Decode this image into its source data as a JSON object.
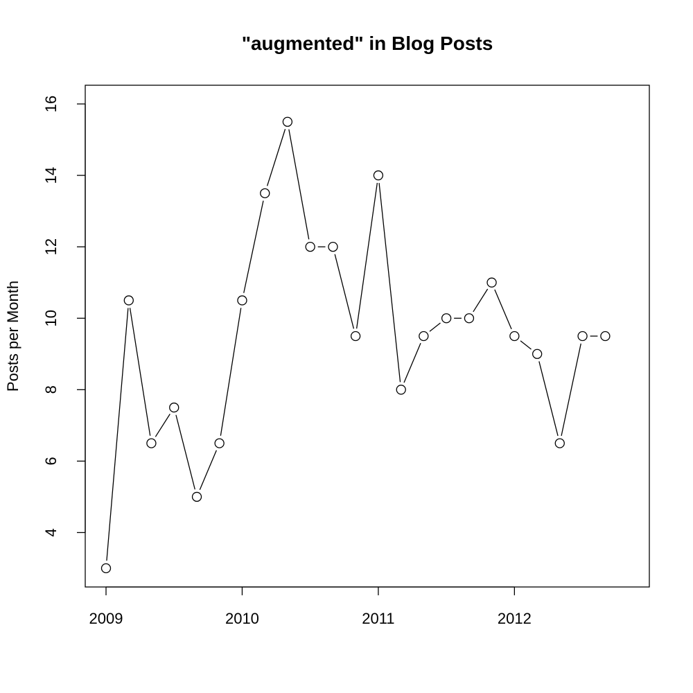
{
  "chart_data": {
    "type": "line",
    "title": "\"augmented\" in Blog Posts",
    "xlabel": "",
    "ylabel": "Posts per Month",
    "x_ticks": [
      "2009",
      "2010",
      "2011",
      "2012"
    ],
    "y_ticks": [
      "4",
      "6",
      "8",
      "10",
      "12",
      "14",
      "16"
    ],
    "xlim": [
      2009,
      2012.833
    ],
    "ylim": [
      3,
      16
    ],
    "grid": false,
    "series": [
      {
        "x": [
          2009.0,
          2009.167,
          2009.333,
          2009.5,
          2009.667,
          2009.833,
          2010.0,
          2010.167,
          2010.333,
          2010.5,
          2010.667,
          2010.833,
          2011.0,
          2011.167,
          2011.333,
          2011.5,
          2011.667,
          2011.833,
          2012.0,
          2012.167,
          2012.333,
          2012.5,
          2012.667
        ],
        "values": [
          3,
          10.5,
          6.5,
          7.5,
          5,
          6.5,
          10.5,
          13.5,
          15.5,
          12,
          12,
          9.5,
          14,
          8,
          9.5,
          10,
          10,
          11,
          9.5,
          9,
          6.5,
          9.5,
          9.5
        ]
      }
    ]
  }
}
